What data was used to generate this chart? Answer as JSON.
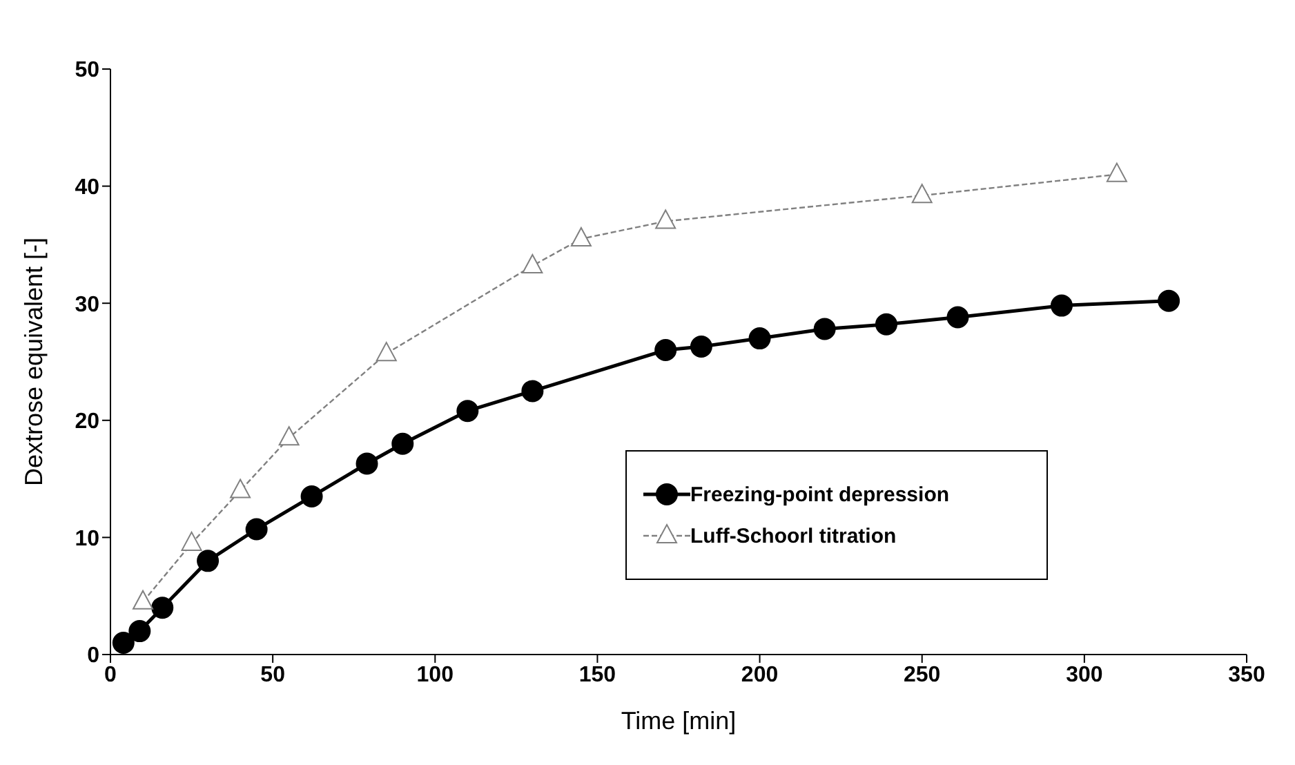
{
  "chart_data": {
    "type": "line",
    "xlabel": "Time [min]",
    "ylabel": "Dextrose equivalent [-]",
    "xlim": [
      0,
      350
    ],
    "xticks": [
      0,
      50,
      100,
      150,
      200,
      250,
      300,
      350
    ],
    "ylim": [
      0,
      50
    ],
    "yticks": [
      0,
      10,
      20,
      30,
      40,
      50
    ],
    "grid": false,
    "legend": "right",
    "series": [
      {
        "name": "Freezing-point depression",
        "color": "#000000",
        "marker": "circle",
        "line_style": "solid",
        "x": [
          4,
          9,
          16,
          30,
          45,
          62,
          79,
          90,
          110,
          130,
          171,
          182,
          200,
          220,
          239,
          261,
          293,
          326
        ],
        "values": [
          1,
          2,
          4,
          8,
          10.7,
          13.5,
          16.3,
          18,
          20.8,
          22.5,
          26,
          26.3,
          27,
          27.8,
          28.2,
          28.8,
          29.8,
          30.2
        ]
      },
      {
        "name": "Luff-Schoorl titration",
        "color": "#808080",
        "marker": "triangle",
        "line_style": "dashed",
        "x": [
          10,
          25,
          40,
          55,
          85,
          130,
          145,
          171,
          250,
          310
        ],
        "values": [
          4.5,
          9.5,
          14,
          18.5,
          25.7,
          33.2,
          35.5,
          37,
          39.2,
          41
        ]
      }
    ]
  }
}
